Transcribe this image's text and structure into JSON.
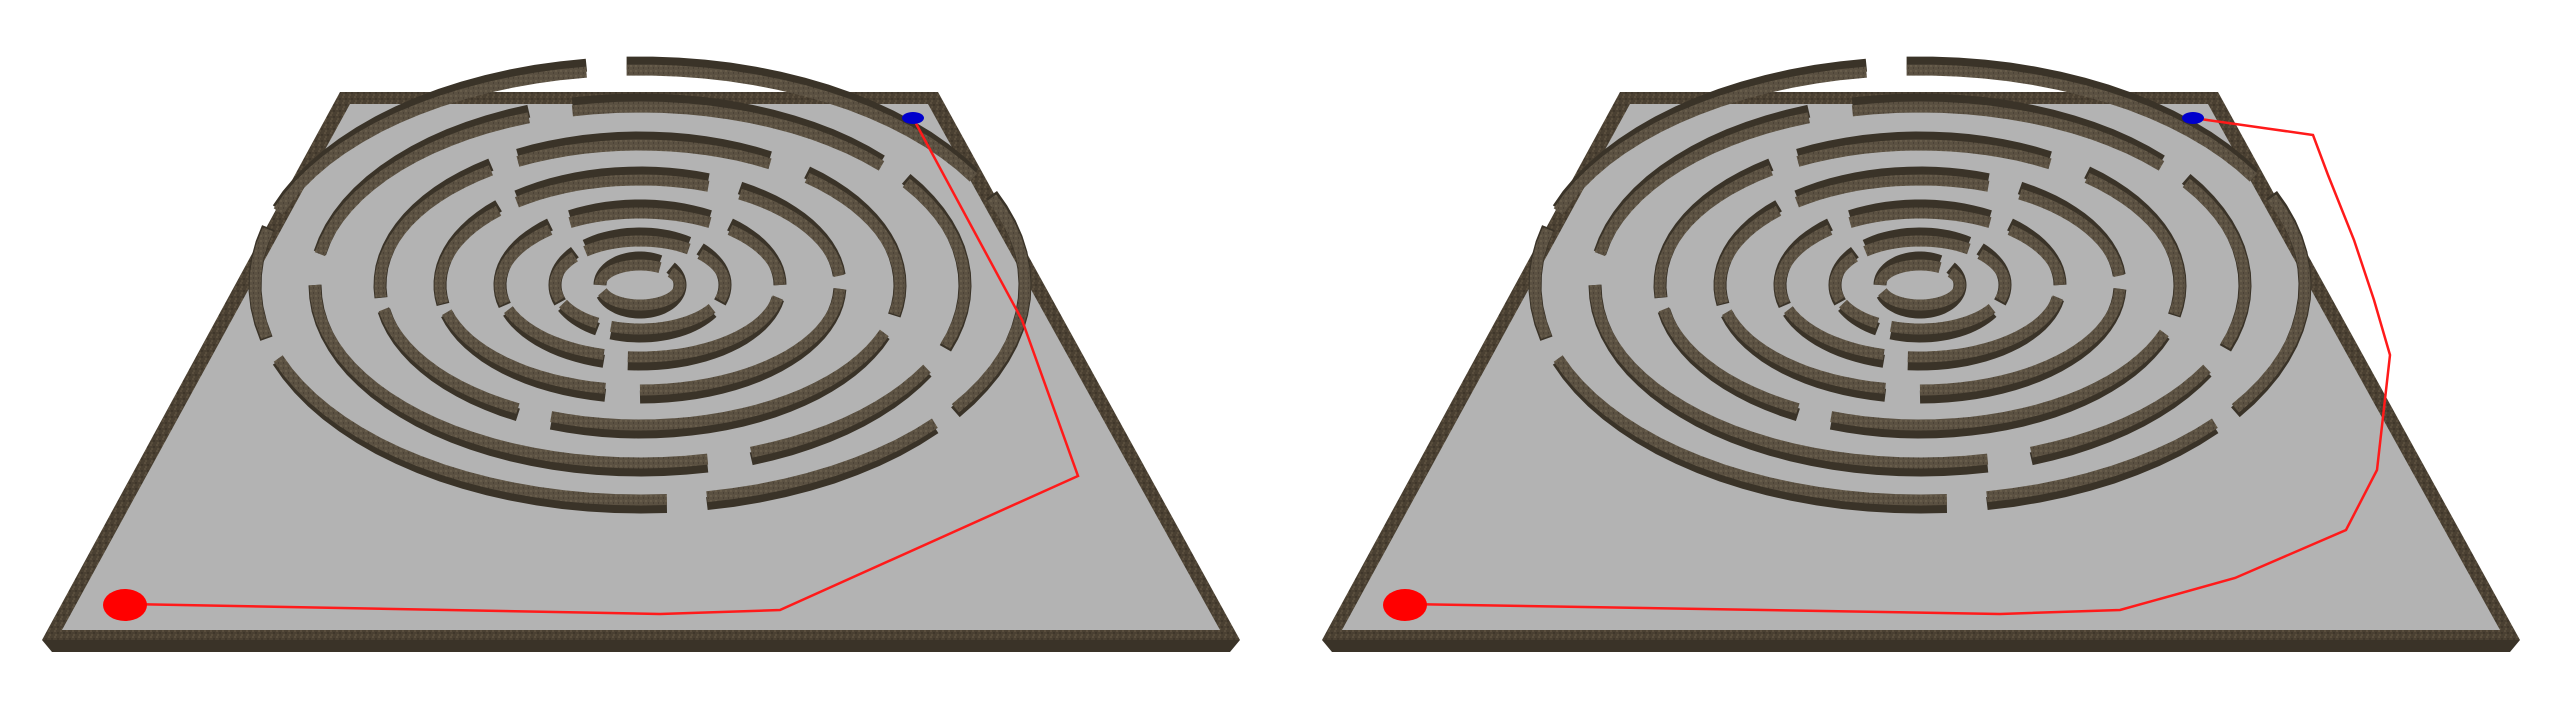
{
  "scene": {
    "description_colors": {
      "background": "#ffffff",
      "board_floor": "#b3b3b3",
      "board_rim": "#4a4032",
      "wall_top": "#5b5142",
      "wall_side": "#3a3328",
      "start_marker": "#ff0000",
      "goal_marker": "#0000cc",
      "path_line": "#ff1a1a"
    },
    "views": [
      {
        "name": "left-view"
      },
      {
        "name": "right-view"
      }
    ]
  }
}
